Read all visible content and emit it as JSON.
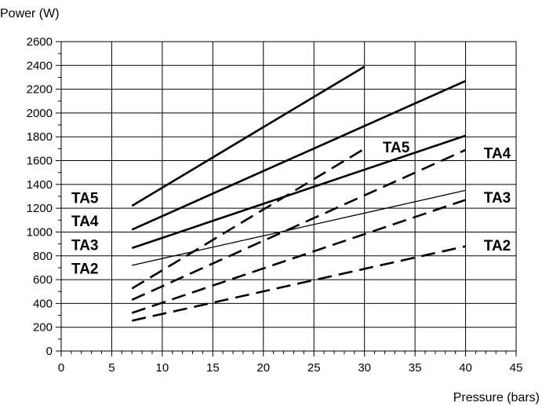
{
  "chart_data": {
    "type": "line",
    "title": "",
    "ylabel": "Power  (W)",
    "xlabel": "Pressure  (bars)",
    "xlim": [
      0,
      45
    ],
    "ylim": [
      0,
      2600
    ],
    "x_ticks": [
      0,
      5,
      10,
      15,
      20,
      25,
      30,
      35,
      40,
      45
    ],
    "y_ticks": [
      0,
      200,
      400,
      600,
      800,
      1000,
      1200,
      1400,
      1600,
      1800,
      2000,
      2200,
      2400,
      2600
    ],
    "grid": true,
    "series": [
      {
        "name": "TA5",
        "style": "solid",
        "weight": "heavy",
        "points": [
          [
            7,
            1220
          ],
          [
            30,
            2390
          ]
        ]
      },
      {
        "name": "TA4",
        "style": "solid",
        "weight": "heavy",
        "points": [
          [
            7,
            1020
          ],
          [
            40,
            2270
          ]
        ]
      },
      {
        "name": "TA3",
        "style": "solid",
        "weight": "heavy",
        "points": [
          [
            7,
            865
          ],
          [
            40,
            1810
          ]
        ]
      },
      {
        "name": "TA2",
        "style": "solid",
        "weight": "thin",
        "points": [
          [
            7,
            720
          ],
          [
            40,
            1350
          ]
        ]
      },
      {
        "name": "TA5",
        "style": "dashed",
        "weight": "heavy",
        "points": [
          [
            7,
            525
          ],
          [
            30,
            1700
          ]
        ]
      },
      {
        "name": "TA4",
        "style": "dashed",
        "weight": "heavy",
        "points": [
          [
            7,
            430
          ],
          [
            40,
            1690
          ]
        ]
      },
      {
        "name": "TA3",
        "style": "dashed",
        "weight": "heavy",
        "points": [
          [
            7,
            320
          ],
          [
            40,
            1270
          ]
        ]
      },
      {
        "name": "TA2",
        "style": "dashed",
        "weight": "heavy",
        "points": [
          [
            7,
            255
          ],
          [
            40,
            880
          ]
        ]
      }
    ],
    "left_labels": [
      "TA5",
      "TA4",
      "TA3",
      "TA2"
    ],
    "right_labels": [
      {
        "text": "TA5",
        "x": 31.8,
        "y": 1715
      },
      {
        "text": "TA4",
        "x": 41.8,
        "y": 1665
      },
      {
        "text": "TA3",
        "x": 41.8,
        "y": 1295
      },
      {
        "text": "TA2",
        "x": 41.8,
        "y": 890
      }
    ]
  }
}
